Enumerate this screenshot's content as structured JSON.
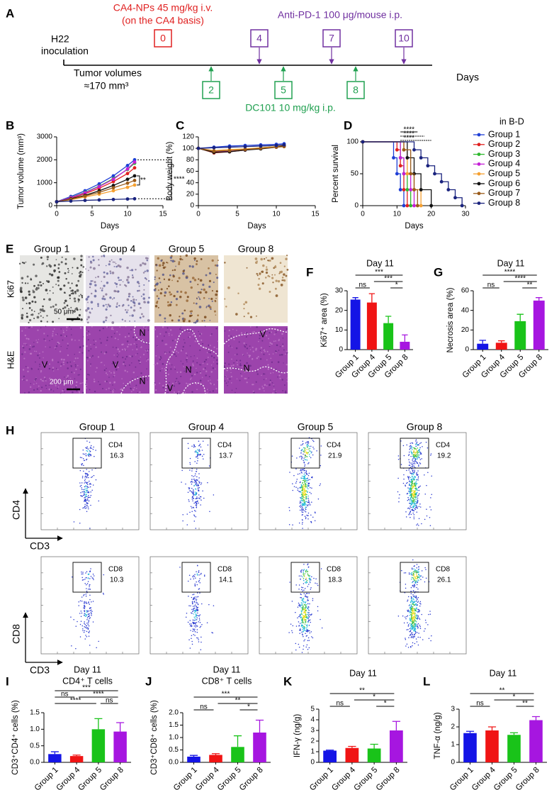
{
  "panel_a": {
    "letter": "A",
    "inoculation": [
      "H22",
      "inoculation"
    ],
    "ca4_lines": [
      "CA4-NPs 45 mg/kg i.v.",
      "(on the CA4 basis)"
    ],
    "anti_pd1": "Anti-PD-1 100 μg/mouse i.p.",
    "volume_lines": [
      "Tumor volumes",
      "≈170 mm³"
    ],
    "dc101": "DC101 10 mg/kg i.p.",
    "x_label": "Days",
    "top_days": [
      0,
      4,
      7,
      10
    ],
    "bottom_days": [
      2,
      5,
      8
    ]
  },
  "panel_e": {
    "letter": "E",
    "columns": [
      "Group 1",
      "Group 4",
      "Group 5",
      "Group 8"
    ],
    "rows": [
      "Ki67",
      "H&E"
    ],
    "scale_bars": [
      "50 μm",
      "200 μm"
    ],
    "region_labels": [
      [
        "V"
      ],
      [
        "N",
        "V",
        "N"
      ],
      [
        "N",
        "V"
      ],
      [
        "V",
        "N"
      ]
    ]
  },
  "panel_h": {
    "letter": "H",
    "columns": [
      "Group 1",
      "Group 4",
      "Group 5",
      "Group 8"
    ],
    "rows": [
      {
        "gate": "CD4",
        "values": [
          16.3,
          13.7,
          21.9,
          19.2
        ],
        "y_axis": "CD4",
        "x_axis": "CD3"
      },
      {
        "gate": "CD8",
        "values": [
          10.3,
          14.1,
          18.3,
          26.1
        ],
        "y_axis": "CD8",
        "x_axis": "CD3"
      }
    ]
  },
  "chart_data": [
    {
      "type": "line",
      "panel": "B",
      "y_label": "Tumor volume (mm³)",
      "x_label": "Days",
      "x": [
        0,
        2,
        4,
        6,
        8,
        10,
        11
      ],
      "xlim": [
        0,
        15
      ],
      "xticks": [
        0,
        5,
        10,
        15
      ],
      "ylim": [
        0,
        3000
      ],
      "yticks": [
        0,
        1000,
        2000,
        3000
      ],
      "annotations": [
        "****",
        "**"
      ],
      "series": [
        {
          "color": "#1f3fd6",
          "values": [
            170,
            400,
            650,
            950,
            1300,
            1750,
            2000
          ]
        },
        {
          "color": "#e0201f",
          "values": [
            170,
            330,
            520,
            760,
            1050,
            1400,
            1650
          ]
        },
        {
          "color": "#2db82d",
          "values": [
            170,
            360,
            580,
            850,
            1180,
            1580,
            1850
          ]
        },
        {
          "color": "#c51fd6",
          "values": [
            170,
            350,
            560,
            830,
            1150,
            1600,
            1900
          ]
        },
        {
          "color": "#f5a030",
          "values": [
            170,
            260,
            380,
            500,
            650,
            800,
            900
          ]
        },
        {
          "color": "#111111",
          "values": [
            170,
            300,
            450,
            650,
            880,
            1150,
            1300
          ]
        },
        {
          "color": "#9a5b1a",
          "values": [
            170,
            280,
            420,
            580,
            780,
            980,
            1100
          ]
        },
        {
          "color": "#1a237e",
          "values": [
            170,
            200,
            230,
            250,
            270,
            290,
            300
          ]
        }
      ]
    },
    {
      "type": "line",
      "panel": "C",
      "y_label": "Body weight (%)",
      "x_label": "Days",
      "x": [
        0,
        2,
        4,
        6,
        8,
        10,
        11
      ],
      "xlim": [
        0,
        15
      ],
      "xticks": [
        0,
        5,
        10,
        15
      ],
      "ylim": [
        0,
        120
      ],
      "yticks": [
        0,
        20,
        40,
        60,
        80,
        100,
        120
      ],
      "series": [
        {
          "color": "#1f3fd6",
          "values": [
            100,
            102,
            104,
            105,
            106,
            107,
            108
          ]
        },
        {
          "color": "#e0201f",
          "values": [
            100,
            92,
            94,
            97,
            100,
            103,
            104
          ]
        },
        {
          "color": "#2db82d",
          "values": [
            100,
            93,
            95,
            98,
            101,
            103,
            105
          ]
        },
        {
          "color": "#c51fd6",
          "values": [
            100,
            94,
            95,
            97,
            100,
            102,
            104
          ]
        },
        {
          "color": "#f5a030",
          "values": [
            100,
            96,
            98,
            99,
            101,
            103,
            105
          ]
        },
        {
          "color": "#111111",
          "values": [
            100,
            93,
            94,
            97,
            99,
            102,
            104
          ]
        },
        {
          "color": "#9a5b1a",
          "values": [
            100,
            95,
            96,
            98,
            100,
            102,
            103
          ]
        },
        {
          "color": "#1a237e",
          "values": [
            100,
            101,
            102,
            103,
            104,
            105,
            106
          ]
        }
      ]
    },
    {
      "type": "line",
      "step": true,
      "panel": "D",
      "y_label": "Percent survival",
      "x_label": "Days",
      "xlim": [
        0,
        30
      ],
      "xticks": [
        0,
        10,
        20,
        30
      ],
      "ylim": [
        0,
        100
      ],
      "yticks": [
        0,
        50,
        100
      ],
      "legend_title": "in B-D",
      "annotations": [
        "****",
        "****",
        "****"
      ],
      "series": [
        {
          "name": "Group 1",
          "color": "#1f3fd6",
          "x": [
            0,
            9,
            10,
            11,
            12
          ],
          "values": [
            100,
            75,
            50,
            25,
            0
          ]
        },
        {
          "name": "Group 2",
          "color": "#e0201f",
          "x": [
            0,
            10,
            11,
            12,
            13
          ],
          "values": [
            100,
            87.5,
            62.5,
            25,
            0
          ]
        },
        {
          "name": "Group 3",
          "color": "#2db82d",
          "x": [
            0,
            11,
            12,
            13,
            14
          ],
          "values": [
            100,
            75,
            50,
            25,
            0
          ]
        },
        {
          "name": "Group 4",
          "color": "#c51fd6",
          "x": [
            0,
            11,
            12,
            14,
            15
          ],
          "values": [
            100,
            75,
            50,
            25,
            0
          ]
        },
        {
          "name": "Group 5",
          "color": "#f5a030",
          "x": [
            0,
            12,
            13,
            15,
            17
          ],
          "values": [
            100,
            87.5,
            50,
            25,
            0
          ]
        },
        {
          "name": "Group 6",
          "color": "#111111",
          "x": [
            0,
            13,
            15,
            17,
            20
          ],
          "values": [
            100,
            75,
            50,
            25,
            0
          ]
        },
        {
          "name": "Group 7",
          "color": "#9a5b1a",
          "x": [
            0,
            12,
            14,
            15,
            16
          ],
          "values": [
            100,
            87.5,
            50,
            25,
            0
          ]
        },
        {
          "name": "Group 8",
          "color": "#1a237e",
          "x": [
            0,
            15,
            17,
            19,
            21,
            23,
            25,
            27,
            29
          ],
          "values": [
            100,
            87.5,
            75,
            62.5,
            50,
            37.5,
            25,
            12.5,
            0
          ]
        }
      ]
    },
    {
      "type": "bar",
      "panel": "F",
      "title": "Day 11",
      "y_label": "Ki67⁺ area (%)",
      "categories": [
        "Group 1",
        "Group 4",
        "Group 5",
        "Group 8"
      ],
      "values": [
        25.5,
        24,
        13.5,
        4
      ],
      "errors": [
        1,
        4.5,
        3.5,
        3.5
      ],
      "colors": [
        "#1414e6",
        "#f01414",
        "#19c319",
        "#a616e0"
      ],
      "ylim": [
        0,
        30
      ],
      "yticks": [
        0,
        10,
        20,
        30
      ],
      "significance": [
        "ns",
        "***",
        "***",
        "*"
      ]
    },
    {
      "type": "bar",
      "panel": "G",
      "title": "Day 11",
      "y_label": "Necrosis area (%)",
      "categories": [
        "Group 1",
        "Group 4",
        "Group 5",
        "Group 8"
      ],
      "values": [
        6,
        7,
        29,
        50
      ],
      "errors": [
        3.5,
        2,
        7,
        3
      ],
      "colors": [
        "#1414e6",
        "#f01414",
        "#19c319",
        "#a616e0"
      ],
      "ylim": [
        0,
        60
      ],
      "yticks": [
        0,
        20,
        40,
        60
      ],
      "significance": [
        "ns",
        "****",
        "****",
        "**"
      ]
    },
    {
      "type": "bar",
      "panel": "I",
      "title": "Day 11",
      "subtitle": "CD4⁺ T cells",
      "y_label": "CD3⁺CD4⁺ cells (%)",
      "categories": [
        "Group 1",
        "Group 4",
        "Group 5",
        "Group 8"
      ],
      "values": [
        0.25,
        0.19,
        1.0,
        0.93
      ],
      "errors": [
        0.07,
        0.03,
        0.32,
        0.27
      ],
      "colors": [
        "#1414e6",
        "#f01414",
        "#19c319",
        "#a616e0"
      ],
      "ylim": [
        0,
        1.5
      ],
      "yticks": [
        {
          "value": 0,
          "label": "0.0"
        },
        0.5,
        {
          "value": 1,
          "label": "1.0"
        },
        1.5
      ],
      "significance": [
        "***",
        "ns",
        "****",
        "****",
        "ns"
      ]
    },
    {
      "type": "bar",
      "panel": "J",
      "title": "Day 11",
      "subtitle": "CD8⁺ T cells",
      "y_label": "CD3⁺CD8⁺ cells (%)",
      "categories": [
        "Group 1",
        "Group 4",
        "Group 5",
        "Group 8"
      ],
      "values": [
        0.23,
        0.3,
        0.62,
        1.2
      ],
      "errors": [
        0.05,
        0.05,
        0.45,
        0.5
      ],
      "colors": [
        "#1414e6",
        "#f01414",
        "#19c319",
        "#a616e0"
      ],
      "ylim": [
        0,
        2
      ],
      "yticks": [
        {
          "value": 0,
          "label": "0.0"
        },
        0.5,
        {
          "value": 1,
          "label": "1.0"
        },
        1.5,
        {
          "value": 2,
          "label": "2.0"
        }
      ],
      "significance": [
        "ns",
        "***",
        "**",
        "*"
      ]
    },
    {
      "type": "bar",
      "panel": "K",
      "title": "Day 11",
      "y_label": "IFN-γ (ng/g)",
      "categories": [
        "Group 1",
        "Group 4",
        "Group 5",
        "Group 8"
      ],
      "values": [
        1.1,
        1.35,
        1.3,
        3.0
      ],
      "errors": [
        0.05,
        0.15,
        0.4,
        0.85
      ],
      "colors": [
        "#1414e6",
        "#f01414",
        "#19c319",
        "#a616e0"
      ],
      "ylim": [
        0,
        5
      ],
      "yticks": [
        0,
        1,
        2,
        3,
        4,
        5
      ],
      "significance": [
        "ns",
        "**",
        "*",
        "*"
      ]
    },
    {
      "type": "bar",
      "panel": "L",
      "title": "Day 11",
      "y_label": "TNF-α (ng/g)",
      "categories": [
        "Group 1",
        "Group 4",
        "Group 5",
        "Group 8"
      ],
      "values": [
        1.65,
        1.8,
        1.55,
        2.38
      ],
      "errors": [
        0.1,
        0.2,
        0.12,
        0.2
      ],
      "colors": [
        "#1414e6",
        "#f01414",
        "#19c319",
        "#a616e0"
      ],
      "ylim": [
        0,
        3
      ],
      "yticks": [
        0,
        1,
        2,
        3
      ],
      "significance": [
        "ns",
        "**",
        "*",
        "**"
      ]
    }
  ]
}
